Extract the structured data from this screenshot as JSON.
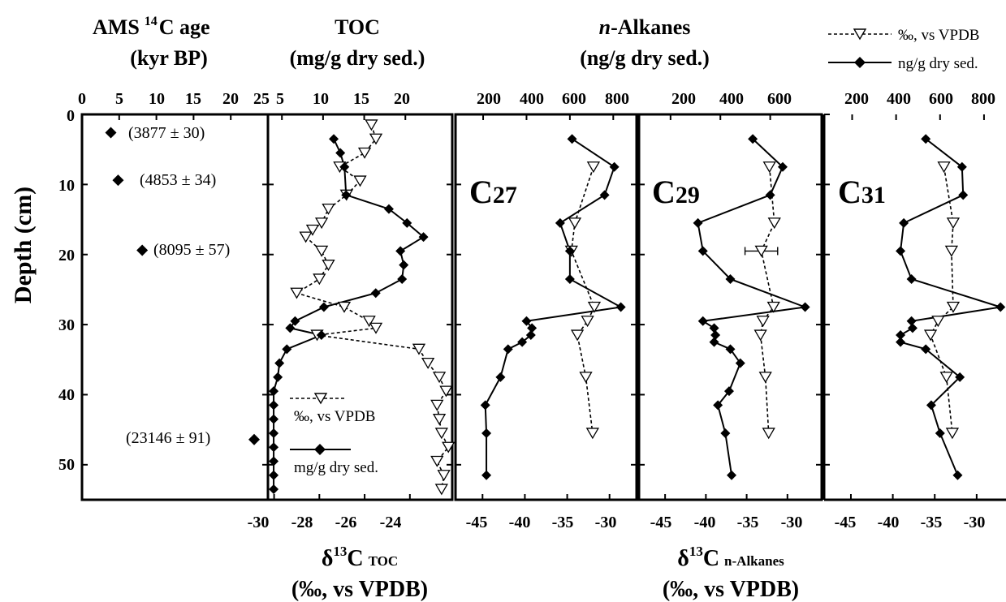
{
  "header": {
    "age_title_1": "AMS",
    "age_title_sup": "14",
    "age_title_2": "C age",
    "age_units": "(kyr BP)",
    "toc_title": "TOC",
    "toc_units": "(mg/g dry sed.)",
    "alk_title_italic": "n",
    "alk_title_rest": "-Alkanes",
    "alk_units": "(ng/g dry sed.)"
  },
  "legend_top": {
    "iso_label": "‰, vs VPDB",
    "conc_label": "ng/g dry sed."
  },
  "legend_toc": {
    "iso_label": "‰, vs VPDB",
    "conc_label": "mg/g dry sed."
  },
  "y_axis": {
    "label": "Depth (cm)",
    "range": [
      0,
      55
    ],
    "ticks": [
      0,
      10,
      20,
      30,
      40,
      50
    ],
    "tick_labels": [
      "0",
      "10",
      "20",
      "30",
      "40",
      "50"
    ]
  },
  "bottom": {
    "toc_delta": "δ",
    "toc_sup": "13",
    "toc_c": "C",
    "toc_sub": "TOC",
    "toc_units": "(‰, vs VPDB)",
    "alk_delta": "δ",
    "alk_sup": "13",
    "alk_c": "C",
    "alk_sub": "n-Alkanes",
    "alk_units": "(‰, vs VPDB)"
  },
  "colors": {
    "ink": "#000000",
    "background": "#ffffff"
  },
  "chart_data": [
    {
      "type": "scatter",
      "panel": "age",
      "x_range": [
        0,
        25
      ],
      "ticks": [
        0,
        5,
        10,
        15,
        20,
        25
      ],
      "tick_labels": [
        "0",
        "5",
        "10",
        "15",
        "20",
        "25"
      ],
      "points": [
        {
          "depth": 2.6,
          "age": 3.877,
          "label": "(3877 ± 30)"
        },
        {
          "depth": 9.4,
          "age": 4.853,
          "label": "(4853 ± 34)"
        },
        {
          "depth": 19.4,
          "age": 8.095,
          "label": "(8095 ± 57)"
        },
        {
          "depth": 46.4,
          "age": 23.146,
          "label": "(23146 ± 91)"
        }
      ]
    },
    {
      "type": "line",
      "panel": "toc",
      "conc_range": [
        3.5,
        25.5
      ],
      "conc_ticks": [
        5,
        10,
        15,
        20
      ],
      "conc_tick_labels": [
        "5",
        "10",
        "15",
        "20"
      ],
      "iso_range": [
        -30.2,
        -22.2
      ],
      "iso_ticks": [
        -30,
        -28,
        -26,
        -24
      ],
      "iso_tick_labels": [
        "-30",
        "-28",
        "-26",
        "-24"
      ],
      "concentration": [
        {
          "depth": 3.5,
          "value": 11.3
        },
        {
          "depth": 5.5,
          "value": 12.1
        },
        {
          "depth": 7.5,
          "value": 12.6
        },
        {
          "depth": 11.5,
          "value": 12.8
        },
        {
          "depth": 13.5,
          "value": 18.0
        },
        {
          "depth": 15.5,
          "value": 20.2
        },
        {
          "depth": 17.5,
          "value": 22.2
        },
        {
          "depth": 19.5,
          "value": 19.4
        },
        {
          "depth": 21.5,
          "value": 19.8
        },
        {
          "depth": 23.5,
          "value": 19.6
        },
        {
          "depth": 25.5,
          "value": 16.4
        },
        {
          "depth": 27.5,
          "value": 10.1
        },
        {
          "depth": 29.5,
          "value": 6.6
        },
        {
          "depth": 30.5,
          "value": 6.0
        },
        {
          "depth": 31.5,
          "value": 9.8
        },
        {
          "depth": 33.5,
          "value": 5.6
        },
        {
          "depth": 35.5,
          "value": 4.7
        },
        {
          "depth": 37.5,
          "value": 4.5
        },
        {
          "depth": 39.5,
          "value": 4.0
        },
        {
          "depth": 41.5,
          "value": 4.0
        },
        {
          "depth": 43.5,
          "value": 4.0
        },
        {
          "depth": 45.5,
          "value": 4.0
        },
        {
          "depth": 47.5,
          "value": 4.0
        },
        {
          "depth": 49.5,
          "value": 4.0
        },
        {
          "depth": 51.5,
          "value": 4.0
        },
        {
          "depth": 53.5,
          "value": 4.0
        }
      ],
      "delta13C": [
        {
          "depth": 1.5,
          "value": -25.7
        },
        {
          "depth": 3.5,
          "value": -25.5
        },
        {
          "depth": 5.5,
          "value": -26.0
        },
        {
          "depth": 7.5,
          "value": -27.1
        },
        {
          "depth": 9.5,
          "value": -26.2
        },
        {
          "depth": 11.5,
          "value": -26.8
        },
        {
          "depth": 13.5,
          "value": -27.6
        },
        {
          "depth": 15.5,
          "value": -27.9
        },
        {
          "depth": 16.5,
          "value": -28.3
        },
        {
          "depth": 17.5,
          "value": -28.6
        },
        {
          "depth": 19.5,
          "value": -27.9
        },
        {
          "depth": 21.5,
          "value": -27.6
        },
        {
          "depth": 23.5,
          "value": -28.0
        },
        {
          "depth": 25.5,
          "value": -29.0
        },
        {
          "depth": 27.5,
          "value": -26.9
        },
        {
          "depth": 29.5,
          "value": -25.8
        },
        {
          "depth": 30.5,
          "value": -25.5
        },
        {
          "depth": 31.5,
          "value": -28.1
        },
        {
          "depth": 33.5,
          "value": -23.6
        },
        {
          "depth": 35.5,
          "value": -23.2
        },
        {
          "depth": 37.5,
          "value": -22.7
        },
        {
          "depth": 39.5,
          "value": -22.4
        },
        {
          "depth": 41.5,
          "value": -22.8
        },
        {
          "depth": 43.5,
          "value": -22.7
        },
        {
          "depth": 45.5,
          "value": -22.6
        },
        {
          "depth": 47.5,
          "value": -22.3
        },
        {
          "depth": 49.5,
          "value": -22.8
        },
        {
          "depth": 51.5,
          "value": -22.5
        },
        {
          "depth": 53.5,
          "value": -22.6
        }
      ]
    },
    {
      "type": "line",
      "panel": "C27",
      "label_main": "C",
      "label_sub": "27",
      "conc_range": [
        80,
        900
      ],
      "conc_ticks": [
        200,
        400,
        600,
        800
      ],
      "conc_tick_labels": [
        "200",
        "400",
        "600",
        "800"
      ],
      "iso_range": [
        -48,
        -27
      ],
      "iso_ticks": [
        -45,
        -40,
        -35,
        -30
      ],
      "iso_tick_labels": [
        "-45",
        "-40",
        "-35",
        "-30"
      ],
      "concentration": [
        {
          "depth": 3.5,
          "value": 610
        },
        {
          "depth": 7.5,
          "value": 805
        },
        {
          "depth": 11.5,
          "value": 760
        },
        {
          "depth": 15.5,
          "value": 555
        },
        {
          "depth": 19.5,
          "value": 600
        },
        {
          "depth": 23.5,
          "value": 600
        },
        {
          "depth": 27.5,
          "value": 835
        },
        {
          "depth": 29.5,
          "value": 400
        },
        {
          "depth": 30.5,
          "value": 425
        },
        {
          "depth": 31.5,
          "value": 420
        },
        {
          "depth": 32.5,
          "value": 380
        },
        {
          "depth": 33.5,
          "value": 315
        },
        {
          "depth": 37.5,
          "value": 280
        },
        {
          "depth": 41.5,
          "value": 210
        },
        {
          "depth": 45.5,
          "value": 215
        },
        {
          "depth": 51.5,
          "value": 215
        }
      ],
      "delta13C": [
        {
          "depth": 7.5,
          "value": -31.9
        },
        {
          "depth": 15.5,
          "value": -34.1
        },
        {
          "depth": 19.5,
          "value": -34.5
        },
        {
          "depth": 27.5,
          "value": -31.8
        },
        {
          "depth": 29.5,
          "value": -32.6
        },
        {
          "depth": 31.5,
          "value": -33.8
        },
        {
          "depth": 37.5,
          "value": -32.8
        },
        {
          "depth": 45.5,
          "value": -32.0
        }
      ]
    },
    {
      "type": "line",
      "panel": "C29",
      "label_main": "C",
      "label_sub": "29",
      "conc_range": [
        80,
        800
      ],
      "conc_ticks": [
        200,
        400,
        600
      ],
      "conc_tick_labels": [
        "200",
        "400",
        "600"
      ],
      "iso_range": [
        -48,
        -26
      ],
      "iso_ticks": [
        -45,
        -40,
        -35,
        -30
      ],
      "iso_tick_labels": [
        "-45",
        "-40",
        "-35",
        "-30"
      ],
      "concentration": [
        {
          "depth": 3.5,
          "value": 530
        },
        {
          "depth": 7.5,
          "value": 650
        },
        {
          "depth": 11.5,
          "value": 600
        },
        {
          "depth": 15.5,
          "value": 310
        },
        {
          "depth": 19.5,
          "value": 330
        },
        {
          "depth": 23.5,
          "value": 440
        },
        {
          "depth": 27.5,
          "value": 740
        },
        {
          "depth": 29.5,
          "value": 330
        },
        {
          "depth": 30.5,
          "value": 375
        },
        {
          "depth": 31.5,
          "value": 380
        },
        {
          "depth": 32.5,
          "value": 375
        },
        {
          "depth": 33.5,
          "value": 440
        },
        {
          "depth": 35.5,
          "value": 480
        },
        {
          "depth": 39.5,
          "value": 435
        },
        {
          "depth": 41.5,
          "value": 390
        },
        {
          "depth": 45.5,
          "value": 420
        },
        {
          "depth": 51.5,
          "value": 445
        }
      ],
      "delta13C": [
        {
          "depth": 7.5,
          "value": -32.2
        },
        {
          "depth": 15.5,
          "value": -31.6
        },
        {
          "depth": 19.5,
          "value": -33.2,
          "error": 2.0
        },
        {
          "depth": 27.5,
          "value": -31.7
        },
        {
          "depth": 29.5,
          "value": -33.0
        },
        {
          "depth": 31.5,
          "value": -33.3
        },
        {
          "depth": 37.5,
          "value": -32.7
        },
        {
          "depth": 45.5,
          "value": -32.3
        }
      ]
    },
    {
      "type": "line",
      "panel": "C31",
      "label_main": "C",
      "label_sub": "31",
      "conc_range": [
        80,
        900
      ],
      "conc_ticks": [
        200,
        400,
        600,
        800
      ],
      "conc_tick_labels": [
        "200",
        "400",
        "600",
        "800"
      ],
      "iso_range": [
        -48,
        -26.5
      ],
      "iso_ticks": [
        -45,
        -40,
        -35,
        -30
      ],
      "iso_tick_labels": [
        "-45",
        "-40",
        "-35",
        "-30"
      ],
      "concentration": [
        {
          "depth": 3.5,
          "value": 535
        },
        {
          "depth": 7.5,
          "value": 700
        },
        {
          "depth": 11.5,
          "value": 705
        },
        {
          "depth": 15.5,
          "value": 435
        },
        {
          "depth": 19.5,
          "value": 420
        },
        {
          "depth": 23.5,
          "value": 470
        },
        {
          "depth": 27.5,
          "value": 875
        },
        {
          "depth": 29.5,
          "value": 470
        },
        {
          "depth": 30.5,
          "value": 475
        },
        {
          "depth": 31.5,
          "value": 420
        },
        {
          "depth": 32.5,
          "value": 420
        },
        {
          "depth": 33.5,
          "value": 535
        },
        {
          "depth": 37.5,
          "value": 690
        },
        {
          "depth": 41.5,
          "value": 560
        },
        {
          "depth": 45.5,
          "value": 600
        },
        {
          "depth": 51.5,
          "value": 680
        }
      ],
      "delta13C": [
        {
          "depth": 7.5,
          "value": -33.9
        },
        {
          "depth": 15.5,
          "value": -32.8
        },
        {
          "depth": 19.5,
          "value": -33.0
        },
        {
          "depth": 27.5,
          "value": -32.8
        },
        {
          "depth": 29.5,
          "value": -34.6
        },
        {
          "depth": 31.5,
          "value": -35.5
        },
        {
          "depth": 37.5,
          "value": -33.6
        },
        {
          "depth": 45.5,
          "value": -32.9
        }
      ]
    }
  ]
}
